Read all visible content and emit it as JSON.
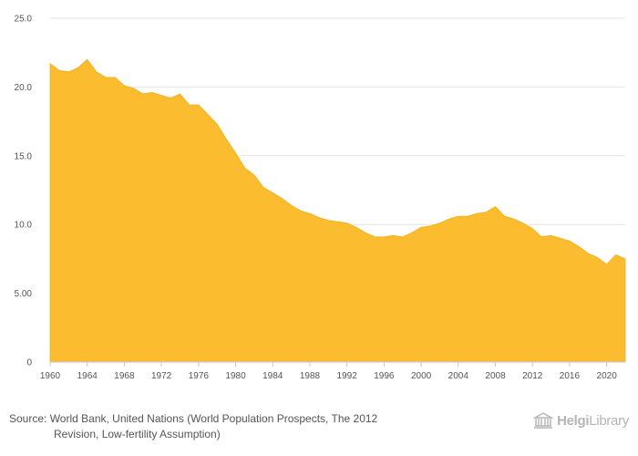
{
  "chart_data": {
    "type": "area",
    "title": "",
    "xlabel": "",
    "ylabel": "",
    "ylim": [
      0,
      25
    ],
    "xlim": [
      1960,
      2022
    ],
    "grid": true,
    "color": "#FBBD2F",
    "y_ticks": [
      0,
      5,
      10,
      15,
      20,
      25
    ],
    "y_tick_labels": [
      "0",
      "5.00",
      "10.0",
      "15.0",
      "20.0",
      "25.0"
    ],
    "x_ticks": [
      1960,
      1964,
      1968,
      1972,
      1976,
      1980,
      1984,
      1988,
      1992,
      1996,
      2000,
      2004,
      2008,
      2012,
      2016,
      2020
    ],
    "x_tick_labels": [
      "1960",
      "1964",
      "1968",
      "1972",
      "1976",
      "1980",
      "1984",
      "1988",
      "1992",
      "1996",
      "2000",
      "2004",
      "2008",
      "2012",
      "2016",
      "2020"
    ],
    "x": [
      1960,
      1961,
      1962,
      1963,
      1964,
      1965,
      1966,
      1967,
      1968,
      1969,
      1970,
      1971,
      1972,
      1973,
      1974,
      1975,
      1976,
      1977,
      1978,
      1979,
      1980,
      1981,
      1982,
      1983,
      1984,
      1985,
      1986,
      1987,
      1988,
      1989,
      1990,
      1991,
      1992,
      1993,
      1994,
      1995,
      1996,
      1997,
      1998,
      1999,
      2000,
      2001,
      2002,
      2003,
      2004,
      2005,
      2006,
      2007,
      2008,
      2009,
      2010,
      2011,
      2012,
      2013,
      2014,
      2015,
      2016,
      2017,
      2018,
      2019,
      2020,
      2021,
      2022
    ],
    "values": [
      21.7,
      21.2,
      21.1,
      21.4,
      22.0,
      21.1,
      20.7,
      20.7,
      20.1,
      19.9,
      19.5,
      19.6,
      19.4,
      19.2,
      19.5,
      18.7,
      18.7,
      18.0,
      17.3,
      16.2,
      15.2,
      14.1,
      13.6,
      12.7,
      12.3,
      11.9,
      11.4,
      11.0,
      10.8,
      10.5,
      10.3,
      10.2,
      10.1,
      9.8,
      9.4,
      9.1,
      9.1,
      9.2,
      9.1,
      9.4,
      9.8,
      9.9,
      10.1,
      10.4,
      10.6,
      10.6,
      10.8,
      10.9,
      11.3,
      10.6,
      10.4,
      10.1,
      9.7,
      9.1,
      9.2,
      9.0,
      8.8,
      8.4,
      7.9,
      7.6,
      7.1,
      7.8,
      7.5
    ]
  },
  "footer": {
    "source_line1": "Source: World Bank, United Nations (World Population Prospects, The 2012",
    "source_line2": "Revision, Low-fertility Assumption)",
    "logo_brand": "Helgi",
    "logo_suffix": "Library",
    "logo_icon": "library-building-icon"
  }
}
